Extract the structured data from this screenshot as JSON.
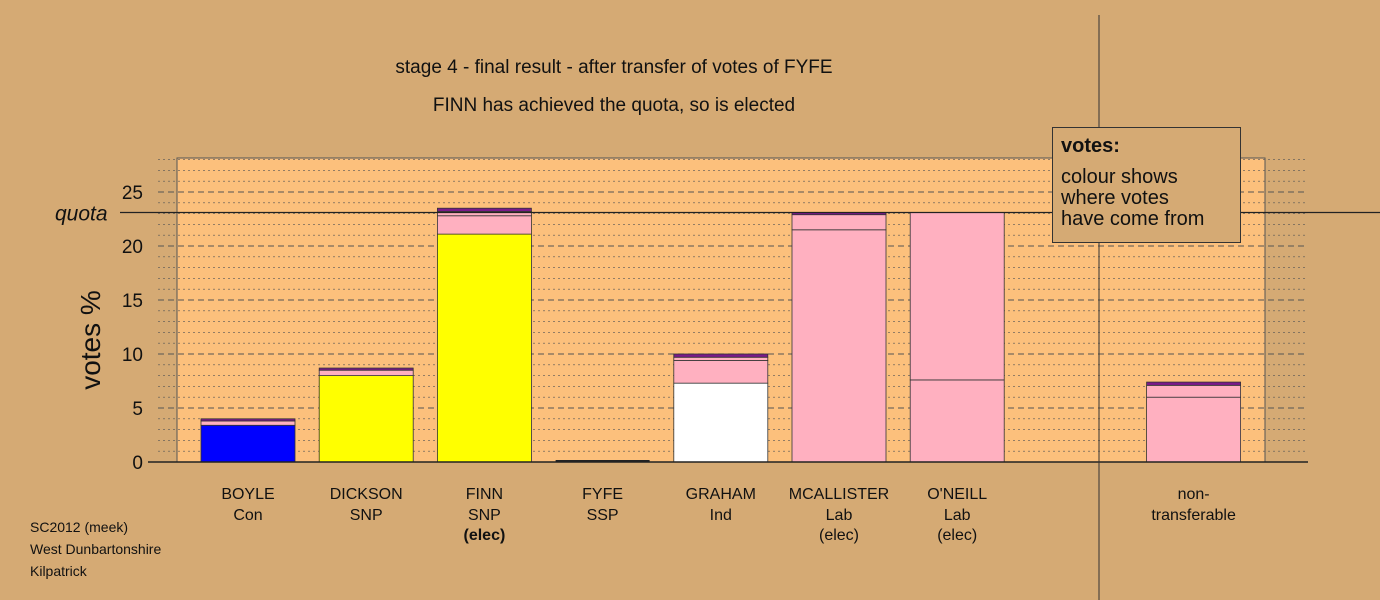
{
  "titles": {
    "line1": "stage 4 - final result - after transfer of votes of FYFE",
    "line2": "FINN has achieved the quota, so is elected"
  },
  "legend": {
    "title": "votes:",
    "lines": [
      "colour shows",
      "where votes",
      "have come from"
    ]
  },
  "footer": [
    "SC2012 (meek)",
    "West Dunbartonshire",
    "Kilpatrick"
  ],
  "colors": {
    "background": "#d5aa74",
    "plot_area": "#fcc07c",
    "Con": "#0000ff",
    "SNP": "#ffff00",
    "Ind": "#ffffff",
    "Lab": "#ffb0c0",
    "transfer_dark": "#7a1a8a"
  },
  "chart_data": {
    "type": "bar",
    "stacked": true,
    "ylabel": "votes %",
    "ylim": [
      0,
      28
    ],
    "yticks": [
      0,
      5,
      10,
      15,
      20,
      25
    ],
    "quota": 23.1,
    "quota_label": "quota",
    "grid": "dashed horizontal lines",
    "legend_position": "top-right",
    "candidates": [
      {
        "name": "BOYLE",
        "party": "Con",
        "status": "",
        "segments": [
          {
            "value": 3.4,
            "color": "#0000ff"
          },
          {
            "value": 0.4,
            "color": "#ffb0c0"
          },
          {
            "value": 0.2,
            "color": "#7a1a8a"
          }
        ]
      },
      {
        "name": "DICKSON",
        "party": "SNP",
        "status": "",
        "segments": [
          {
            "value": 8.0,
            "color": "#ffff00"
          },
          {
            "value": 0.5,
            "color": "#ffb0c0"
          },
          {
            "value": 0.2,
            "color": "#7a1a8a"
          }
        ]
      },
      {
        "name": "FINN",
        "party": "SNP",
        "status": "(elec)",
        "segments": [
          {
            "value": 21.1,
            "color": "#ffff00"
          },
          {
            "value": 1.7,
            "color": "#ffb0c0"
          },
          {
            "value": 0.4,
            "color": "#ffb0c0"
          },
          {
            "value": 0.3,
            "color": "#7a1a8a"
          }
        ]
      },
      {
        "name": "FYFE",
        "party": "SSP",
        "status": "",
        "segments": []
      },
      {
        "name": "GRAHAM",
        "party": "Ind",
        "status": "",
        "segments": [
          {
            "value": 7.3,
            "color": "#ffffff"
          },
          {
            "value": 2.1,
            "color": "#ffb0c0"
          },
          {
            "value": 0.3,
            "color": "#ffb0c0"
          },
          {
            "value": 0.3,
            "color": "#7a1a8a"
          }
        ]
      },
      {
        "name": "MCALLISTER",
        "party": "Lab",
        "status": "(elec)",
        "segments": [
          {
            "value": 21.5,
            "color": "#ffb0c0"
          },
          {
            "value": 1.4,
            "color": "#ffb0c0"
          },
          {
            "value": 0.2,
            "color": "#7a1a8a"
          }
        ]
      },
      {
        "name": "O'NEILL",
        "party": "Lab",
        "status": "(elec)",
        "segments": [
          {
            "value": 7.6,
            "color": "#ffb0c0"
          },
          {
            "value": 15.5,
            "color": "#ffb0c0"
          }
        ]
      },
      {
        "name": "non-",
        "party": "transferable",
        "status": "",
        "segments": [
          {
            "value": 6.0,
            "color": "#ffb0c0"
          },
          {
            "value": 1.1,
            "color": "#ffb0c0"
          },
          {
            "value": 0.3,
            "color": "#7a1a8a"
          }
        ]
      }
    ]
  }
}
